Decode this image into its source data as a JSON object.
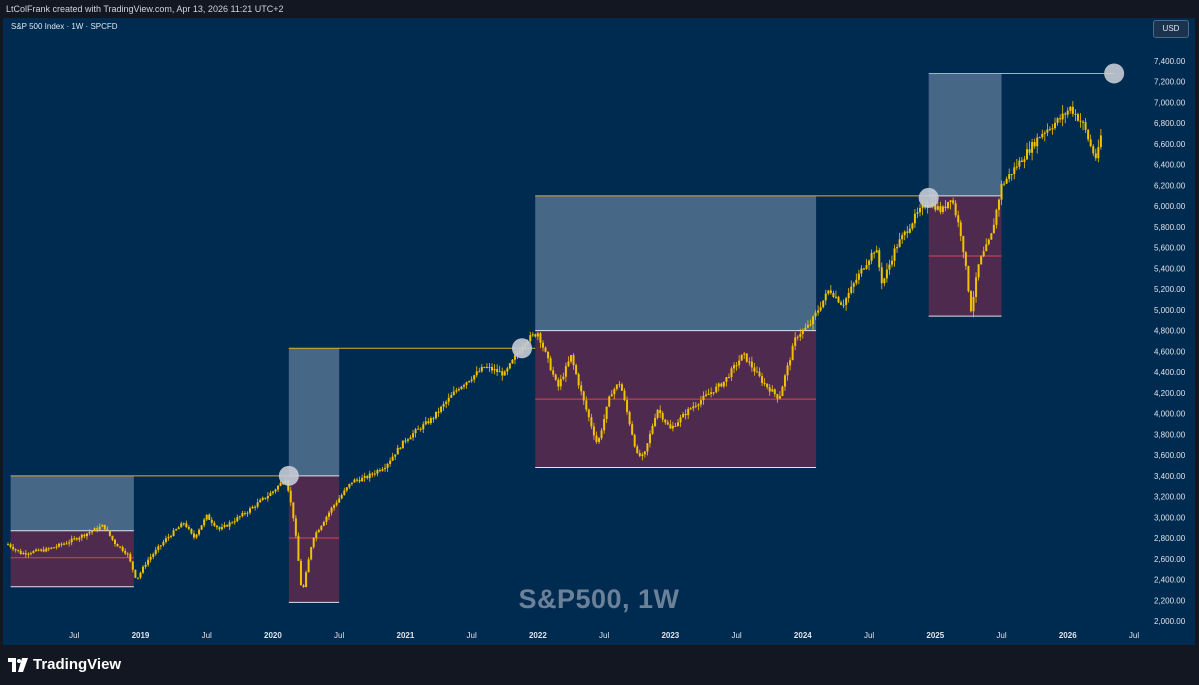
{
  "header": {
    "credit": "LtColFrank created with TradingView.com, Apr 13, 2026 11:21 UTC+2"
  },
  "chart": {
    "symbol": "S&P 500 Index · 1W · SPCFD",
    "currency": "USD",
    "watermark": "S&P500, 1W"
  },
  "footer": {
    "brand": "TradingView"
  },
  "colors": {
    "background": "#002b50",
    "candle": "#f2c200",
    "target_box": "#5d7c97",
    "drawdown_box": "#5c2c4e",
    "target_line": "#d9b21e",
    "midline": "#d64553",
    "marker": "#c5ccd6"
  },
  "chart_data": {
    "type": "candlestick",
    "title": "S&P500, 1W",
    "timeframe": "1W",
    "ylim": [
      2000,
      7500
    ],
    "y_ticks": [
      "2,000.00",
      "2,200.00",
      "2,400.00",
      "2,600.00",
      "2,800.00",
      "3,000.00",
      "3,200.00",
      "3,400.00",
      "3,600.00",
      "3,800.00",
      "4,000.00",
      "4,200.00",
      "4,400.00",
      "4,600.00",
      "4,800.00",
      "5,000.00",
      "5,200.00",
      "5,400.00",
      "5,600.00",
      "5,800.00",
      "6,000.00",
      "6,200.00",
      "6,400.00",
      "6,600.00",
      "6,800.00",
      "7,000.00",
      "7,200.00",
      "7,400.00"
    ],
    "x_ticks": [
      {
        "label": "Jul",
        "t": 2018.5,
        "bold": false
      },
      {
        "label": "2019",
        "t": 2019.0,
        "bold": true
      },
      {
        "label": "Jul",
        "t": 2019.5,
        "bold": false
      },
      {
        "label": "2020",
        "t": 2020.0,
        "bold": true
      },
      {
        "label": "Jul",
        "t": 2020.5,
        "bold": false
      },
      {
        "label": "2021",
        "t": 2021.0,
        "bold": true
      },
      {
        "label": "Jul",
        "t": 2021.5,
        "bold": false
      },
      {
        "label": "2022",
        "t": 2022.0,
        "bold": true
      },
      {
        "label": "Jul",
        "t": 2022.5,
        "bold": false
      },
      {
        "label": "2023",
        "t": 2023.0,
        "bold": true
      },
      {
        "label": "Jul",
        "t": 2023.5,
        "bold": false
      },
      {
        "label": "2024",
        "t": 2024.0,
        "bold": true
      },
      {
        "label": "Jul",
        "t": 2024.5,
        "bold": false
      },
      {
        "label": "2025",
        "t": 2025.0,
        "bold": true
      },
      {
        "label": "Jul",
        "t": 2025.5,
        "bold": false
      },
      {
        "label": "2026",
        "t": 2026.0,
        "bold": true
      },
      {
        "label": "Jul",
        "t": 2026.5,
        "bold": false
      }
    ],
    "price_path": [
      [
        2018.0,
        2740
      ],
      [
        2018.1,
        2650
      ],
      [
        2018.3,
        2690
      ],
      [
        2018.45,
        2760
      ],
      [
        2018.72,
        2920
      ],
      [
        2018.8,
        2760
      ],
      [
        2018.9,
        2650
      ],
      [
        2018.97,
        2400
      ],
      [
        2019.05,
        2580
      ],
      [
        2019.2,
        2800
      ],
      [
        2019.33,
        2950
      ],
      [
        2019.4,
        2800
      ],
      [
        2019.5,
        3010
      ],
      [
        2019.6,
        2880
      ],
      [
        2019.8,
        3050
      ],
      [
        2020.0,
        3250
      ],
      [
        2020.1,
        3380
      ],
      [
        2020.16,
        2960
      ],
      [
        2020.22,
        2250
      ],
      [
        2020.3,
        2800
      ],
      [
        2020.45,
        3100
      ],
      [
        2020.6,
        3350
      ],
      [
        2020.7,
        3380
      ],
      [
        2020.85,
        3500
      ],
      [
        2021.0,
        3750
      ],
      [
        2021.2,
        3950
      ],
      [
        2021.4,
        4250
      ],
      [
        2021.6,
        4450
      ],
      [
        2021.75,
        4380
      ],
      [
        2021.9,
        4700
      ],
      [
        2022.0,
        4780
      ],
      [
        2022.15,
        4250
      ],
      [
        2022.25,
        4550
      ],
      [
        2022.35,
        4100
      ],
      [
        2022.45,
        3700
      ],
      [
        2022.55,
        4200
      ],
      [
        2022.62,
        4300
      ],
      [
        2022.75,
        3600
      ],
      [
        2022.8,
        3580
      ],
      [
        2022.9,
        4050
      ],
      [
        2023.0,
        3850
      ],
      [
        2023.15,
        4050
      ],
      [
        2023.25,
        4150
      ],
      [
        2023.4,
        4300
      ],
      [
        2023.55,
        4570
      ],
      [
        2023.7,
        4300
      ],
      [
        2023.82,
        4150
      ],
      [
        2023.95,
        4750
      ],
      [
        2024.05,
        4850
      ],
      [
        2024.2,
        5200
      ],
      [
        2024.3,
        5050
      ],
      [
        2024.45,
        5400
      ],
      [
        2024.55,
        5600
      ],
      [
        2024.6,
        5250
      ],
      [
        2024.7,
        5600
      ],
      [
        2024.85,
        5900
      ],
      [
        2024.95,
        6050
      ],
      [
        2025.05,
        5950
      ],
      [
        2025.12,
        6100
      ],
      [
        2025.2,
        5700
      ],
      [
        2025.27,
        5000
      ],
      [
        2025.33,
        5450
      ],
      [
        2025.42,
        5700
      ],
      [
        2025.5,
        6200
      ],
      [
        2025.65,
        6450
      ],
      [
        2025.8,
        6700
      ],
      [
        2025.95,
        6850
      ],
      [
        2026.02,
        6950
      ],
      [
        2026.12,
        6780
      ],
      [
        2026.18,
        6550
      ],
      [
        2026.22,
        6450
      ],
      [
        2026.26,
        6750
      ]
    ],
    "zones": [
      {
        "t0": 2018.02,
        "t1": 2018.95,
        "target_top": 3400,
        "base": 2870,
        "mid": 2610,
        "low": 2330
      },
      {
        "t0": 2020.12,
        "t1": 2020.5,
        "target_top": 4630,
        "base": 3400,
        "mid": 2800,
        "low": 2180
      },
      {
        "t0": 2021.98,
        "t1": 2024.1,
        "target_top": 6100,
        "base": 4800,
        "mid": 4140,
        "low": 3480
      },
      {
        "t0": 2024.95,
        "t1": 2025.5,
        "target_top": 7280,
        "base": 6100,
        "mid": 5520,
        "low": 4940
      }
    ],
    "target_lines": [
      {
        "t0": 2018.02,
        "t1": 2020.12,
        "y": 3400
      },
      {
        "t0": 2020.12,
        "t1": 2021.98,
        "y": 4630
      },
      {
        "t0": 2021.98,
        "t1": 2024.95,
        "y": 6100
      },
      {
        "t0": 2024.95,
        "t1": 2026.35,
        "y": 7280
      }
    ],
    "markers": [
      {
        "t": 2020.12,
        "y": 3400
      },
      {
        "t": 2021.88,
        "y": 4630
      },
      {
        "t": 2024.95,
        "y": 6080
      },
      {
        "t": 2026.35,
        "y": 7280
      }
    ]
  }
}
